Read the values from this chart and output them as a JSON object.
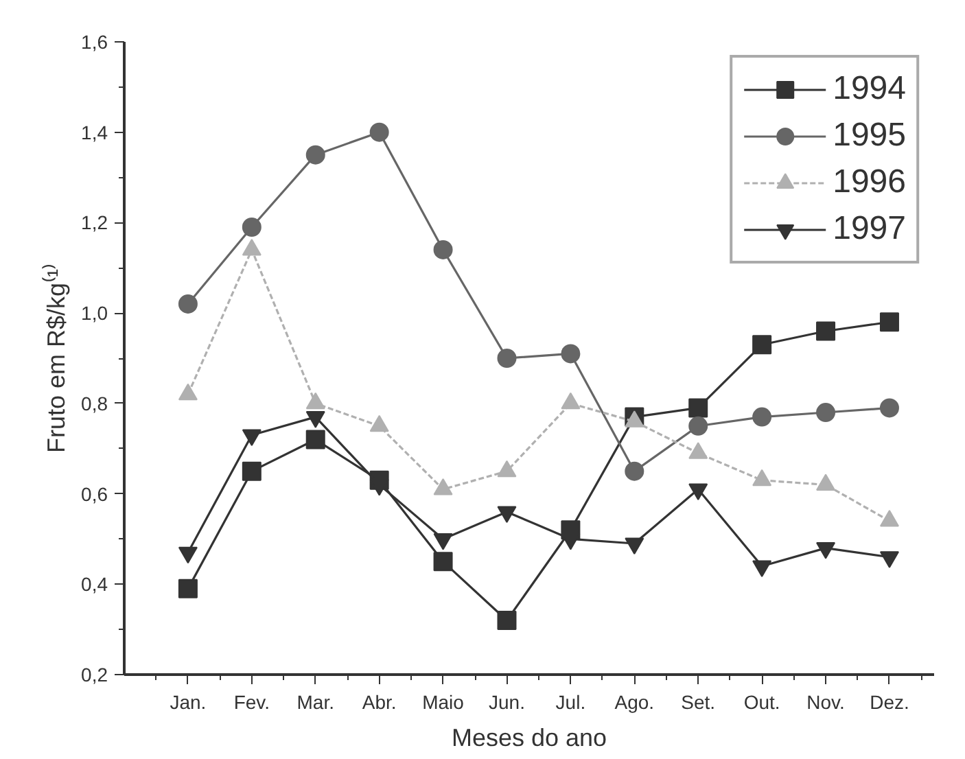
{
  "chart_data": {
    "type": "line",
    "xlabel": "Meses do ano",
    "ylabel": "Fruto em R$/kg⁽¹⁾",
    "categories": [
      "Jan.",
      "Fev.",
      "Mar.",
      "Abr.",
      "Maio",
      "Jun.",
      "Jul.",
      "Ago.",
      "Set.",
      "Out.",
      "Nov.",
      "Dez."
    ],
    "series": [
      {
        "name": "1994",
        "color": "#333333",
        "marker": "square",
        "line_style": "solid",
        "values": [
          0.39,
          0.65,
          0.72,
          0.63,
          0.45,
          0.32,
          0.52,
          0.77,
          0.79,
          0.93,
          0.96,
          0.98
        ]
      },
      {
        "name": "1995",
        "color": "#666666",
        "marker": "circle",
        "line_style": "solid",
        "values": [
          1.02,
          1.19,
          1.35,
          1.4,
          1.14,
          0.9,
          0.91,
          0.65,
          0.75,
          0.77,
          0.78,
          0.79
        ]
      },
      {
        "name": "1996",
        "color": "#b0b0b0",
        "marker": "triangle",
        "line_style": "dashed",
        "values": [
          0.82,
          1.14,
          0.8,
          0.75,
          0.61,
          0.65,
          0.8,
          0.76,
          0.69,
          0.63,
          0.62,
          0.54
        ]
      },
      {
        "name": "1997",
        "color": "#333333",
        "marker": "triangle_down",
        "line_style": "solid",
        "values": [
          0.47,
          0.73,
          0.77,
          0.62,
          0.5,
          0.56,
          0.5,
          0.49,
          0.61,
          0.44,
          0.48,
          0.46
        ]
      }
    ],
    "ylim": [
      0.2,
      1.6
    ],
    "yticks": [
      {
        "value": 0.2,
        "label": "0,2"
      },
      {
        "value": 0.4,
        "label": "0,4"
      },
      {
        "value": 0.6,
        "label": "0,6"
      },
      {
        "value": 0.8,
        "label": "0,8"
      },
      {
        "value": 1.0,
        "label": "1,0"
      },
      {
        "value": 1.2,
        "label": "1,2"
      },
      {
        "value": 1.4,
        "label": "1,4"
      },
      {
        "value": 1.6,
        "label": "1,6"
      }
    ],
    "grid": false,
    "legend": "top right"
  }
}
